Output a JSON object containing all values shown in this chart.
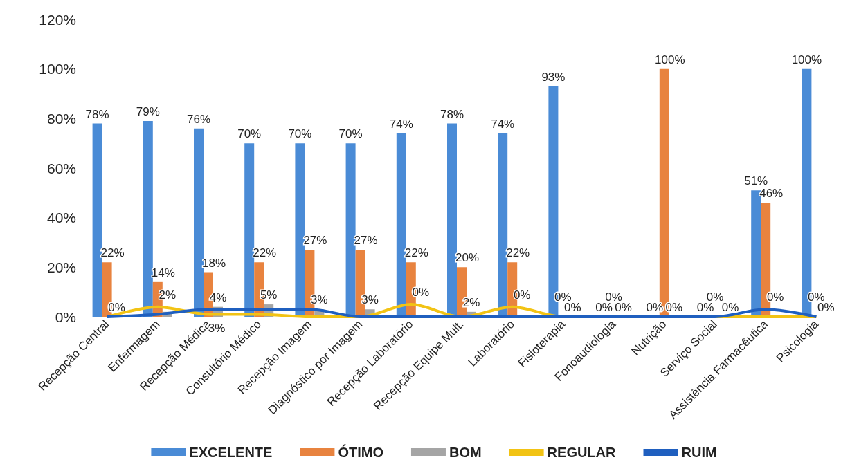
{
  "chart_data": {
    "type": "bar",
    "categories": [
      "Recepção Central",
      "Enfermagem",
      "Recepção Médica",
      "Consultório Médico",
      "Recepção Imagem",
      "Diagnóstico por Imagem",
      "Recepção Laboratório",
      "Recepção Equipe Mult.",
      "Laboratório",
      "Fisioterapia",
      "Fonoaudiologia",
      "Nutrição",
      "Serviço Social",
      "Assistência Farmacêutica",
      "Psicologia"
    ],
    "series": [
      {
        "name": "EXCELENTE",
        "color": "#4a8bd6",
        "values": [
          78,
          79,
          76,
          70,
          70,
          70,
          74,
          78,
          74,
          93,
          0,
          0,
          0,
          51,
          100
        ],
        "value_labels": [
          "78%",
          "79%",
          "76%",
          "70%",
          "70%",
          "70%",
          "74%",
          "78%",
          "74%",
          "93%",
          "0%",
          "0%",
          "0%",
          "51%",
          "100%"
        ]
      },
      {
        "name": "ÓTIMO",
        "color": "#e8833f",
        "values": [
          22,
          14,
          18,
          22,
          27,
          27,
          22,
          20,
          22,
          0,
          0,
          100,
          0,
          46,
          0
        ],
        "value_labels": [
          "22%",
          "14%",
          "18%",
          "22%",
          "27%",
          "27%",
          "22%",
          "20%",
          "22%",
          "0%",
          "0%",
          "100%",
          "0%",
          "46%",
          "0%"
        ]
      },
      {
        "name": "BOM",
        "color": "#a5a5a5",
        "values": [
          0,
          2,
          4,
          5,
          3,
          3,
          0,
          2,
          0,
          0,
          0,
          0,
          0,
          0,
          0
        ],
        "value_labels": [
          "0%",
          "2%",
          "4%",
          "5%",
          "3%",
          "3%",
          "0%",
          "2%",
          "0%",
          "0%",
          "0%",
          "0%",
          null,
          "0%",
          "0%"
        ]
      },
      {
        "name": "REGULAR",
        "type": "line",
        "color": "#f2c314",
        "values": [
          0,
          4,
          1,
          1,
          0,
          0,
          5,
          0,
          4,
          0,
          0,
          0,
          0,
          0,
          0
        ],
        "value_labels": [
          null,
          null,
          null,
          null,
          null,
          null,
          null,
          null,
          null,
          null,
          null,
          null,
          "0%",
          null,
          null
        ]
      },
      {
        "name": "RUIM",
        "type": "line",
        "color": "#1f5fbf",
        "values": [
          0,
          1,
          3,
          3,
          3,
          0,
          0,
          0,
          0,
          0,
          0,
          0,
          0,
          3,
          0
        ],
        "value_labels": [
          null,
          null,
          "3%",
          null,
          null,
          null,
          null,
          null,
          null,
          null,
          null,
          null,
          null,
          null,
          null
        ]
      }
    ],
    "ylim": [
      0,
      120
    ],
    "yticks": [
      {
        "value": 0,
        "label": "0%"
      },
      {
        "value": 20,
        "label": "20%"
      },
      {
        "value": 40,
        "label": "40%"
      },
      {
        "value": 60,
        "label": "60%"
      },
      {
        "value": 80,
        "label": "80%"
      },
      {
        "value": 100,
        "label": "100%"
      },
      {
        "value": 120,
        "label": "120%"
      }
    ],
    "grid": false,
    "legend": "bottom",
    "marker": "none",
    "line_style": "solid"
  }
}
